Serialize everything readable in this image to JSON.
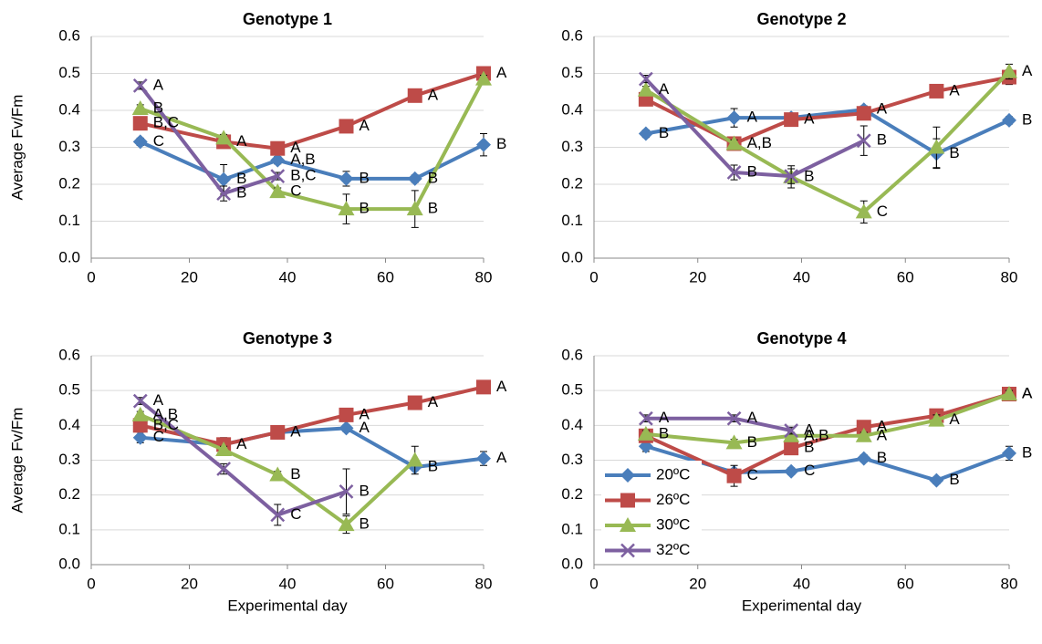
{
  "chart_data": [
    {
      "type": "line",
      "title": "Genotype 1",
      "ylabel": "Average Fv/Fm",
      "x": [
        10,
        27,
        38,
        52,
        66,
        80
      ],
      "xlim": [
        0,
        80
      ],
      "xticks": [
        0,
        20,
        40,
        60,
        80
      ],
      "ylim": [
        0,
        0.6
      ],
      "yticks": [
        {
          "value": 0,
          "label": "0.0"
        },
        0.1,
        0.2,
        0.3,
        0.4,
        0.5,
        0.6
      ],
      "grid": true,
      "series": [
        {
          "name": "20ºC",
          "color": "#4a7ebb",
          "marker": "diamond",
          "values": [
            0.315,
            0.213,
            0.265,
            0.215,
            0.215,
            0.307
          ],
          "errors": [
            0.01,
            0.04,
            0.01,
            0.02,
            0.01,
            0.03
          ],
          "letters": [
            "C",
            "B",
            "A,B",
            "B",
            "B",
            "B"
          ]
        },
        {
          "name": "26ºC",
          "color": "#be4b48",
          "marker": "square",
          "values": [
            0.365,
            0.315,
            0.297,
            0.357,
            0.44,
            0.5
          ],
          "errors": [
            0.01,
            0.01,
            0.01,
            0.01,
            0.01,
            0.01
          ],
          "letters": [
            "B,C",
            "A",
            "A",
            "A",
            "A",
            "A"
          ]
        },
        {
          "name": "30ºC",
          "color": "#98b954",
          "marker": "triangle",
          "values": [
            0.405,
            0.325,
            0.18,
            0.133,
            0.133,
            0.485
          ],
          "errors": [
            0.01,
            0.01,
            0.01,
            0.04,
            0.05,
            0.01
          ],
          "letters": [
            "B",
            null,
            "C",
            "B",
            "B",
            null
          ]
        },
        {
          "name": "32ºC",
          "color": "#7d60a0",
          "marker": "x",
          "values": [
            0.467,
            0.175,
            0.222,
            null,
            null,
            null
          ],
          "errors": [
            0.01,
            0.02,
            0.01,
            null,
            null,
            null
          ],
          "letters": [
            "A",
            "B",
            "B,C",
            null,
            null,
            null
          ]
        }
      ]
    },
    {
      "type": "line",
      "title": "Genotype 2",
      "x": [
        10,
        27,
        38,
        52,
        66,
        80
      ],
      "xlim": [
        0,
        80
      ],
      "xticks": [
        0,
        20,
        40,
        60,
        80
      ],
      "ylim": [
        0,
        0.6
      ],
      "yticks": [
        {
          "value": 0,
          "label": "0.0"
        },
        0.1,
        0.2,
        0.3,
        0.4,
        0.5,
        0.6
      ],
      "grid": true,
      "series": [
        {
          "name": "20ºC",
          "color": "#4a7ebb",
          "marker": "diamond",
          "values": [
            0.337,
            0.38,
            0.38,
            0.402,
            0.283,
            0.373
          ],
          "errors": [
            0.01,
            0.025,
            0.01,
            0.01,
            0.04,
            0.01
          ],
          "letters": [
            "B",
            "A",
            null,
            "A",
            "B",
            "B"
          ]
        },
        {
          "name": "26ºC",
          "color": "#be4b48",
          "marker": "square",
          "values": [
            0.43,
            0.31,
            0.375,
            0.392,
            0.452,
            0.49
          ],
          "errors": [
            0.01,
            0.01,
            0.01,
            0.01,
            0.01,
            0.02
          ],
          "letters": [
            null,
            "A,B",
            "A",
            null,
            "A",
            null
          ]
        },
        {
          "name": "30ºC",
          "color": "#98b954",
          "marker": "triangle",
          "values": [
            0.455,
            0.31,
            0.22,
            0.125,
            0.3,
            0.505
          ],
          "errors": [
            0.01,
            0.01,
            0.03,
            0.03,
            0.055,
            0.02
          ],
          "letters": [
            "A",
            null,
            "B",
            "C",
            null,
            "A"
          ]
        },
        {
          "name": "32ºC",
          "color": "#7d60a0",
          "marker": "x",
          "values": [
            0.485,
            0.232,
            0.222,
            0.318,
            null,
            null
          ],
          "errors": [
            0.01,
            0.02,
            0.02,
            0.04,
            null,
            null
          ],
          "letters": [
            null,
            "B",
            null,
            "B",
            null,
            null
          ]
        }
      ]
    },
    {
      "type": "line",
      "title": "Genotype 3",
      "ylabel": "Average Fv/Fm",
      "xlabel": "Experimental day",
      "x": [
        10,
        27,
        38,
        52,
        66,
        80
      ],
      "xlim": [
        0,
        80
      ],
      "xticks": [
        0,
        20,
        40,
        60,
        80
      ],
      "ylim": [
        0,
        0.6
      ],
      "yticks": [
        {
          "value": 0,
          "label": "0.0"
        },
        0.1,
        0.2,
        0.3,
        0.4,
        0.5,
        0.6
      ],
      "grid": true,
      "series": [
        {
          "name": "20ºC",
          "color": "#4a7ebb",
          "marker": "diamond",
          "values": [
            0.365,
            0.345,
            0.38,
            0.392,
            0.28,
            0.305
          ],
          "errors": [
            0.015,
            0.01,
            0.01,
            0.01,
            0.01,
            0.02
          ],
          "letters": [
            "C",
            null,
            null,
            "A",
            "B",
            "A"
          ]
        },
        {
          "name": "26ºC",
          "color": "#be4b48",
          "marker": "square",
          "values": [
            0.4,
            0.345,
            0.38,
            0.43,
            0.465,
            0.51
          ],
          "errors": [
            0.01,
            0.02,
            0.01,
            0.01,
            0.01,
            0.01
          ],
          "letters": [
            "B,C",
            "A",
            "A",
            "A",
            "A",
            "A"
          ]
        },
        {
          "name": "30ºC",
          "color": "#98b954",
          "marker": "triangle",
          "values": [
            0.43,
            0.33,
            0.258,
            0.115,
            0.3,
            null
          ],
          "errors": [
            0.01,
            0.01,
            0.01,
            0.025,
            0.04,
            null
          ],
          "letters": [
            "A,B",
            null,
            "B",
            "B",
            null,
            null
          ]
        },
        {
          "name": "32ºC",
          "color": "#7d60a0",
          "marker": "x",
          "values": [
            0.47,
            0.275,
            0.143,
            0.21,
            null,
            null
          ],
          "errors": [
            0.01,
            0.015,
            0.03,
            0.065,
            null,
            null
          ],
          "letters": [
            "A",
            null,
            "C",
            "B",
            null,
            null
          ]
        }
      ]
    },
    {
      "type": "line",
      "title": "Genotype 4",
      "xlabel": "Experimental day",
      "legend": "lower left",
      "x": [
        10,
        27,
        38,
        52,
        66,
        80
      ],
      "xlim": [
        0,
        80
      ],
      "xticks": [
        0,
        20,
        40,
        60,
        80
      ],
      "ylim": [
        0,
        0.6
      ],
      "yticks": [
        {
          "value": 0,
          "label": "0.0"
        },
        0.1,
        0.2,
        0.3,
        0.4,
        0.5,
        0.6
      ],
      "grid": true,
      "series": [
        {
          "name": "20ºC",
          "color": "#4a7ebb",
          "marker": "diamond",
          "values": [
            0.34,
            0.265,
            0.268,
            0.305,
            0.242,
            0.32
          ],
          "errors": [
            0.015,
            0.01,
            0.01,
            0.01,
            0.01,
            0.02
          ],
          "letters": [
            null,
            null,
            "C",
            "B",
            "B",
            "B"
          ]
        },
        {
          "name": "26ºC",
          "color": "#be4b48",
          "marker": "square",
          "values": [
            0.37,
            0.255,
            0.335,
            0.395,
            0.428,
            0.49
          ],
          "errors": [
            0.01,
            0.03,
            0.01,
            0.01,
            0.01,
            0.01
          ],
          "letters": [
            null,
            "C",
            "B",
            "A",
            null,
            "A"
          ]
        },
        {
          "name": "30ºC",
          "color": "#98b954",
          "marker": "triangle",
          "values": [
            0.375,
            0.35,
            0.37,
            0.37,
            0.415,
            0.49
          ],
          "errors": [
            0.01,
            0.01,
            0.01,
            0.01,
            0.015,
            0.01
          ],
          "letters": [
            "B",
            "B",
            "A,B",
            "A",
            "A",
            "A"
          ]
        },
        {
          "name": "32ºC",
          "color": "#7d60a0",
          "marker": "x",
          "values": [
            0.42,
            0.42,
            0.385,
            null,
            null,
            null
          ],
          "errors": [
            0.01,
            0.01,
            0.01,
            null,
            null,
            null
          ],
          "letters": [
            "A",
            "A",
            "A",
            null,
            null,
            null
          ]
        }
      ]
    }
  ]
}
